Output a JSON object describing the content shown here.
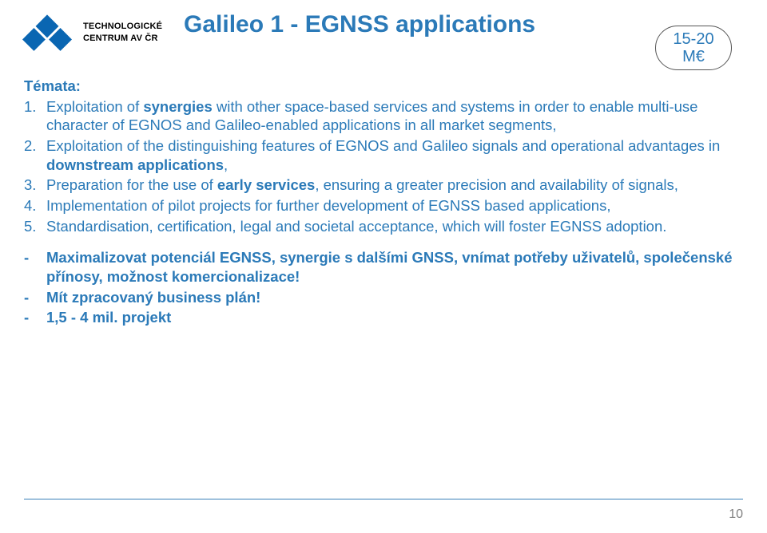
{
  "logo": {
    "line1": "TECHNOLOGICKÉ",
    "line2": "CENTRUM AV ČR",
    "mark_color": "#0a66b2"
  },
  "title": "Galileo 1 - EGNSS applications",
  "badge": {
    "line1": "15-20",
    "line2": "M€"
  },
  "temata_label": "Témata:",
  "items": [
    {
      "n": "1.",
      "parts": [
        {
          "t": "Exploitation of ",
          "b": false
        },
        {
          "t": "synergies",
          "b": true
        },
        {
          "t": " with other space-based services and systems in order to enable multi-use character of EGNOS and Galileo-enabled applications in all market segments,",
          "b": false
        }
      ]
    },
    {
      "n": "2.",
      "parts": [
        {
          "t": "Exploitation of the distinguishing features of EGNOS and Galileo signals and operational advantages in ",
          "b": false
        },
        {
          "t": "downstream applications",
          "b": true
        },
        {
          "t": ",",
          "b": false
        }
      ]
    },
    {
      "n": "3.",
      "parts": [
        {
          "t": "Preparation for the use of ",
          "b": false
        },
        {
          "t": "early services",
          "b": true
        },
        {
          "t": ", ensuring a greater precision and availability of signals,",
          "b": false
        }
      ]
    },
    {
      "n": "4.",
      "parts": [
        {
          "t": "Implementation of pilot projects for further development of EGNSS based applications,",
          "b": false
        }
      ]
    },
    {
      "n": "5.",
      "parts": [
        {
          "t": "Standardisation, certification, legal and societal acceptance, which will foster EGNSS adoption.",
          "b": false
        }
      ]
    }
  ],
  "bullets": [
    "Maximalizovat potenciál EGNSS, synergie s dalšími GNSS, vnímat potřeby uživatelů, společenské přínosy, možnost komercionalizace!",
    "Mít zpracovaný business plán!",
    "1,5 - 4 mil. projekt"
  ],
  "page_number": "10",
  "colors": {
    "text": "#2b7ab8",
    "rule": "#3a7fb8",
    "pagenum": "#808080"
  }
}
